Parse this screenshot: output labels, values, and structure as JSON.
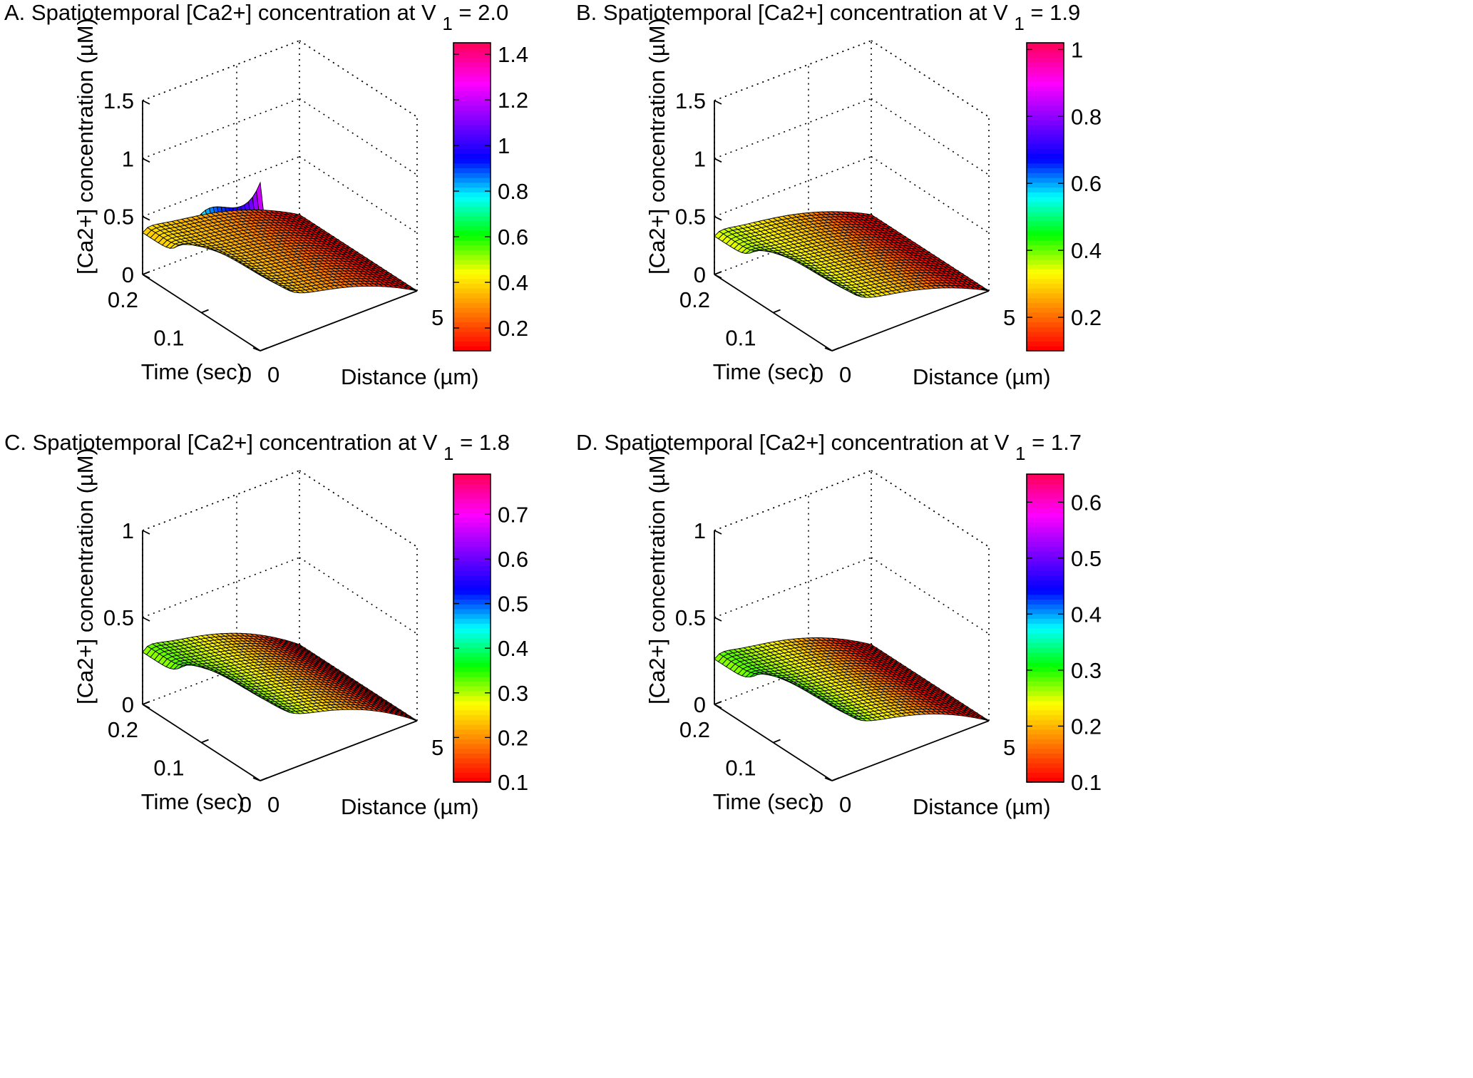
{
  "chart_data": [
    {
      "type": "surface3d",
      "title": "A. Spatiotemporal [Ca2+] concentration at V",
      "title_subscript": "1",
      "title_suffix": "= 2.0",
      "xlabel": "Distance (µm)",
      "ylabel": "Time (sec)",
      "zlabel": "[Ca2+] concentration (µM)",
      "x_range": [
        0,
        5
      ],
      "x_ticks": [
        "0",
        "5"
      ],
      "y_range": [
        0,
        0.2
      ],
      "y_ticks": [
        "0",
        "0.1",
        "0.2"
      ],
      "zlim": [
        0,
        1.5
      ],
      "z_ticks": [
        "0",
        "0.5",
        "1",
        "1.5"
      ],
      "peak": 1.45,
      "plateau": 0.36,
      "colorbar": {
        "min": 0.1,
        "max": 1.45,
        "ticks": [
          "0.2",
          "0.4",
          "0.6",
          "0.8",
          "1",
          "1.2",
          "1.4"
        ]
      }
    },
    {
      "type": "surface3d",
      "title": "B. Spatiotemporal [Ca2+] concentration at V",
      "title_subscript": "1",
      "title_suffix": "= 1.9",
      "xlabel": "Distance (µm)",
      "ylabel": "Time (sec)",
      "zlabel": "[Ca2+] concentration (µM)",
      "x_range": [
        0,
        5
      ],
      "x_ticks": [
        "0",
        "5"
      ],
      "y_range": [
        0,
        0.2
      ],
      "y_ticks": [
        "0",
        "0.1",
        "0.2"
      ],
      "zlim": [
        0,
        1.5
      ],
      "z_ticks": [
        "0",
        "0.5",
        "1",
        "1.5"
      ],
      "peak": 1.0,
      "plateau": 0.33,
      "colorbar": {
        "min": 0.1,
        "max": 1.02,
        "ticks": [
          "0.2",
          "0.4",
          "0.6",
          "0.8",
          "1"
        ]
      }
    },
    {
      "type": "surface3d",
      "title": "C. Spatiotemporal [Ca2+] concentration at V",
      "title_subscript": "1",
      "title_suffix": "= 1.8",
      "xlabel": "Distance (µm)",
      "ylabel": "Time (sec)",
      "zlabel": "[Ca2+] concentration (µM)",
      "x_range": [
        0,
        5
      ],
      "x_ticks": [
        "0",
        "5"
      ],
      "y_range": [
        0,
        0.2
      ],
      "y_ticks": [
        "0",
        "0.1",
        "0.2"
      ],
      "zlim": [
        0,
        1
      ],
      "z_ticks": [
        "0",
        "0.5",
        "1"
      ],
      "peak": 0.78,
      "plateau": 0.3,
      "colorbar": {
        "min": 0.1,
        "max": 0.79,
        "ticks": [
          "0.1",
          "0.2",
          "0.3",
          "0.4",
          "0.5",
          "0.6",
          "0.7"
        ]
      }
    },
    {
      "type": "surface3d",
      "title": "D. Spatiotemporal [Ca2+] concentration at V",
      "title_subscript": "1",
      "title_suffix": "= 1.7",
      "xlabel": "Distance (µm)",
      "ylabel": "Time (sec)",
      "zlabel": "[Ca2+] concentration (µM)",
      "x_range": [
        0,
        5
      ],
      "x_ticks": [
        "0",
        "5"
      ],
      "y_range": [
        0,
        0.2
      ],
      "y_ticks": [
        "0",
        "0.1",
        "0.2"
      ],
      "zlim": [
        0,
        1
      ],
      "z_ticks": [
        "0",
        "0.5",
        "1"
      ],
      "peak": 0.64,
      "plateau": 0.26,
      "colorbar": {
        "min": 0.1,
        "max": 0.65,
        "ticks": [
          "0.1",
          "0.2",
          "0.3",
          "0.4",
          "0.5",
          "0.6"
        ]
      }
    }
  ],
  "colormap": [
    "#ff0000",
    "#ff8000",
    "#ffff00",
    "#00ff00",
    "#00ffff",
    "#0000ff",
    "#8000ff",
    "#ff00ff",
    "#ff0060"
  ]
}
